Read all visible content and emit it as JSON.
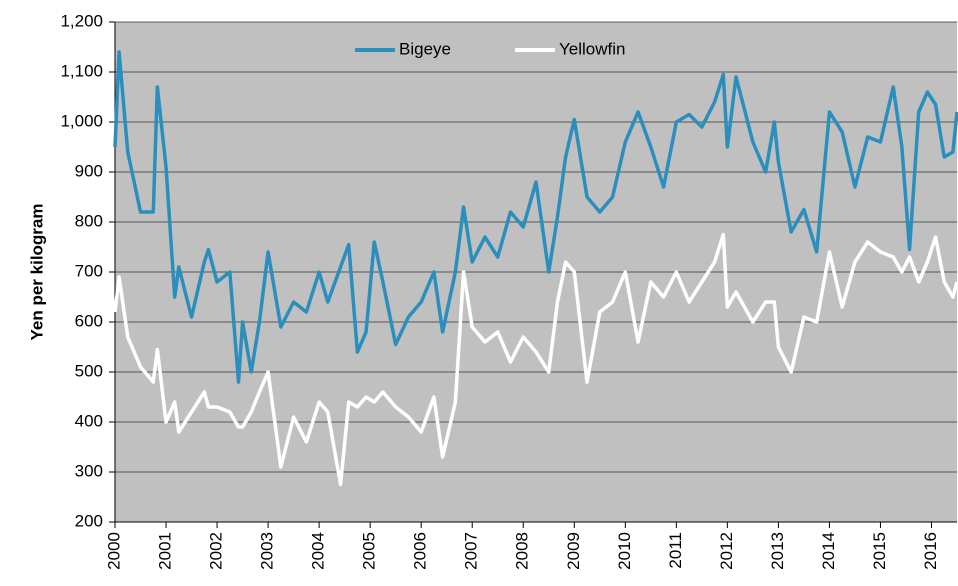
{
  "chart_data": {
    "type": "line",
    "y_axis_label": "Yen per kilogram",
    "x": [
      2000,
      2000.08,
      2000.25,
      2000.5,
      2000.75,
      2000.83,
      2001,
      2001.17,
      2001.25,
      2001.5,
      2001.75,
      2001.83,
      2002,
      2002.25,
      2002.42,
      2002.5,
      2002.67,
      2002.83,
      2003,
      2003.25,
      2003.5,
      2003.75,
      2004,
      2004.17,
      2004.42,
      2004.58,
      2004.75,
      2004.92,
      2005.08,
      2005.25,
      2005.5,
      2005.75,
      2006,
      2006.25,
      2006.42,
      2006.67,
      2006.83,
      2007,
      2007.25,
      2007.5,
      2007.75,
      2008,
      2008.25,
      2008.5,
      2008.67,
      2008.83,
      2009,
      2009.25,
      2009.5,
      2009.75,
      2010,
      2010.25,
      2010.5,
      2010.75,
      2011,
      2011.25,
      2011.5,
      2011.75,
      2011.92,
      2012,
      2012.17,
      2012.5,
      2012.75,
      2012.92,
      2013,
      2013.25,
      2013.5,
      2013.75,
      2014,
      2014.25,
      2014.5,
      2014.75,
      2015,
      2015.25,
      2015.42,
      2015.57,
      2015.75,
      2015.92,
      2016.08,
      2016.25,
      2016.42,
      2016.5
    ],
    "series": [
      {
        "name": "Bigeye",
        "color": "#2a8fbd",
        "values": [
          950,
          1140,
          940,
          820,
          820,
          1070,
          910,
          650,
          710,
          610,
          720,
          745,
          680,
          700,
          480,
          600,
          500,
          600,
          740,
          590,
          640,
          620,
          700,
          640,
          710,
          755,
          540,
          580,
          760,
          680,
          555,
          610,
          640,
          700,
          580,
          700,
          830,
          720,
          770,
          730,
          820,
          790,
          880,
          700,
          810,
          930,
          1005,
          850,
          820,
          850,
          960,
          1020,
          950,
          870,
          1000,
          1015,
          990,
          1040,
          1095,
          950,
          1090,
          960,
          900,
          1000,
          920,
          780,
          825,
          740,
          1020,
          980,
          870,
          970,
          960,
          1070,
          950,
          745,
          1020,
          1060,
          1035,
          930,
          940,
          1020
        ]
      },
      {
        "name": "Yellowfin",
        "color": "#ffffff",
        "values": [
          620,
          690,
          570,
          510,
          480,
          545,
          400,
          440,
          380,
          420,
          460,
          430,
          430,
          420,
          390,
          390,
          420,
          460,
          500,
          310,
          410,
          360,
          440,
          420,
          275,
          440,
          430,
          450,
          440,
          460,
          430,
          410,
          380,
          450,
          330,
          440,
          700,
          590,
          560,
          580,
          520,
          570,
          540,
          500,
          640,
          720,
          700,
          480,
          620,
          640,
          700,
          560,
          680,
          650,
          700,
          640,
          680,
          720,
          775,
          630,
          660,
          600,
          640,
          640,
          550,
          500,
          610,
          600,
          740,
          630,
          720,
          760,
          740,
          730,
          700,
          730,
          680,
          720,
          770,
          680,
          650,
          680
        ]
      }
    ],
    "xlim": [
      2000,
      2016.5
    ],
    "xticks": [
      2000,
      2001,
      2002,
      2003,
      2004,
      2005,
      2006,
      2007,
      2008,
      2009,
      2010,
      2011,
      2012,
      2013,
      2014,
      2015,
      2016
    ],
    "ylim": [
      200,
      1200
    ],
    "yticks": [
      200,
      300,
      400,
      500,
      600,
      700,
      800,
      900,
      {
        "value": 1000,
        "label": "1,000"
      },
      {
        "value": 1100,
        "label": "1,100"
      },
      {
        "value": 1200,
        "label": "1,200"
      }
    ],
    "grid": true,
    "background": "#c0c0c0",
    "legend": "top"
  }
}
